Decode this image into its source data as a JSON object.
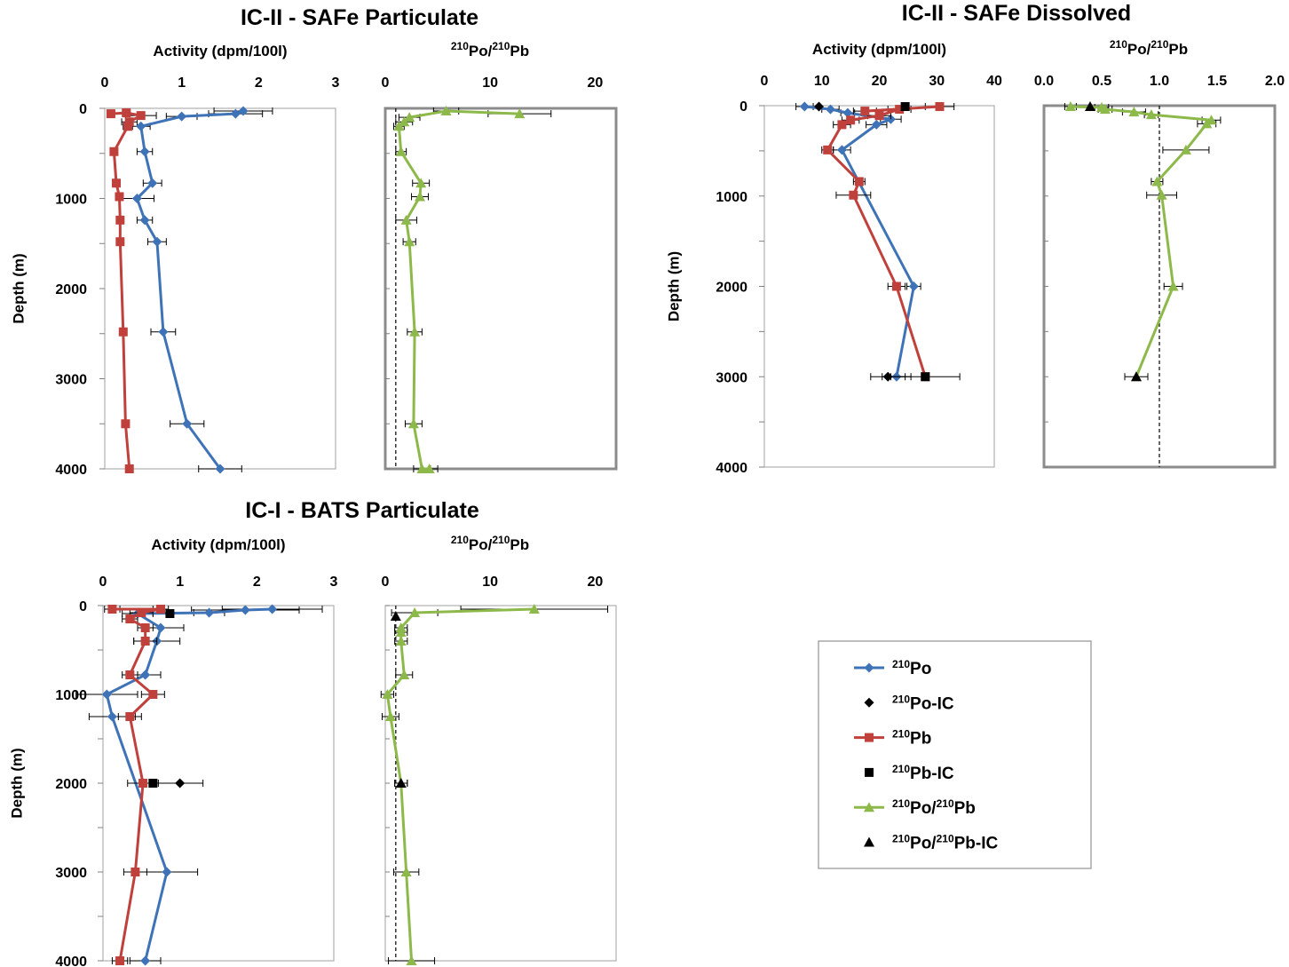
{
  "colors": {
    "po210": "#3F73B7",
    "pb210": "#C0403C",
    "ratio": "#8DB94A",
    "ic": "#000000",
    "frame_light": "#b0b0b0",
    "frame_bold": "#8c8c8c"
  },
  "chart_data": [
    {
      "id": "safe-particulate",
      "title": "IC-II - SAFe Particulate",
      "ylabel": "Depth (m)",
      "ylim": [
        4000,
        0
      ],
      "yticks": [
        0,
        1000,
        2000,
        3000,
        4000
      ],
      "panels": [
        {
          "type": "line",
          "xlabel": "Activity (dpm/100l)",
          "xlim": [
            0,
            3
          ],
          "xticks": [
            0,
            1,
            2,
            3
          ],
          "series": [
            {
              "name": "210Po",
              "marker": "diamond",
              "color": "#3F73B7",
              "x": [
                1.8,
                1.7,
                1.0,
                0.47,
                0.52,
                0.62,
                0.42,
                0.52,
                0.68,
                0.76,
                1.07,
                1.5
              ],
              "y": [
                30,
                60,
                90,
                200,
                480,
                830,
                1000,
                1240,
                1480,
                2480,
                3500,
                4000
              ],
              "xerr": [
                0.38,
                0.35,
                0.2,
                0.12,
                0.1,
                0.12,
                0.22,
                0.1,
                0.12,
                0.16,
                0.22,
                0.28
              ]
            },
            {
              "name": "210Pb",
              "marker": "square",
              "color": "#C0403C",
              "x": [
                0.08,
                0.28,
                0.47,
                0.32,
                0.3,
                0.12,
                0.15,
                0.19,
                0.2,
                0.2,
                0.24,
                0.27,
                0.32
              ],
              "y": [
                60,
                50,
                80,
                150,
                200,
                480,
                830,
                980,
                1240,
                1480,
                2480,
                3500,
                4000
              ],
              "xerr": [
                0.04,
                0.05,
                0.2,
                0.1,
                0.06,
                0.03,
                0.03,
                0.03,
                0.03,
                0.03,
                0.03,
                0.03,
                0.03
              ]
            }
          ]
        },
        {
          "type": "line",
          "xlabel": "210Po/210Pb",
          "xlim": [
            0,
            22
          ],
          "xticks": [
            0,
            10,
            20
          ],
          "ref_line": 1,
          "series": [
            {
              "name": "210Po/210Pb",
              "marker": "triangle",
              "color": "#8DB94A",
              "x": [
                12.8,
                5.8,
                2.3,
                1.8,
                1.3,
                1.5,
                3.4,
                3.3,
                2.0,
                2.3,
                2.8,
                2.7,
                3.5,
                4.2
              ],
              "y": [
                60,
                30,
                100,
                150,
                200,
                480,
                830,
                980,
                1240,
                1480,
                2480,
                3500,
                4000,
                4000
              ],
              "xerr": [
                3.0,
                1.2,
                1.0,
                0.8,
                0.5,
                0.5,
                0.8,
                0.8,
                1.0,
                0.6,
                0.7,
                0.8,
                0.8,
                0.8
              ]
            }
          ]
        }
      ]
    },
    {
      "id": "safe-dissolved",
      "title": "IC-II - SAFe Dissolved",
      "ylabel": "Depth (m)",
      "ylim": [
        4000,
        0
      ],
      "yticks": [
        0,
        1000,
        2000,
        3000,
        4000
      ],
      "panels": [
        {
          "type": "line",
          "xlabel": "Activity (dpm/100l)",
          "xlim": [
            0,
            40
          ],
          "xticks": [
            0,
            10,
            20,
            30,
            40
          ],
          "series": [
            {
              "name": "210Po",
              "marker": "diamond",
              "color": "#3F73B7",
              "x": [
                7,
                11.5,
                14.5,
                22,
                19.5,
                13.5,
                26,
                23
              ],
              "y": [
                10,
                40,
                80,
                150,
                210,
                490,
                2000,
                3000
              ],
              "xerr": [
                1.5,
                1.5,
                1.2,
                1.8,
                1.8,
                1.5,
                1.2,
                2.5
              ]
            },
            {
              "name": "210Pb",
              "marker": "square",
              "color": "#C0403C",
              "x": [
                30.5,
                17.5,
                23.5,
                20,
                15,
                13.5,
                11,
                16.5,
                15.5,
                23,
                28
              ],
              "y": [
                10,
                60,
                40,
                110,
                160,
                210,
                490,
                840,
                990,
                2000,
                3000
              ],
              "xerr": [
                2.5,
                2.0,
                2.0,
                2.0,
                1.5,
                1.5,
                1.0,
                1.0,
                3.0,
                1.5,
                6.0
              ]
            },
            {
              "name": "210Po-IC",
              "marker": "diamond",
              "color": "#000000",
              "x": [
                9.5,
                21.5
              ],
              "y": [
                10,
                3000
              ],
              "xerr": [
                0,
                3.0
              ]
            },
            {
              "name": "210Pb-IC",
              "marker": "square",
              "color": "#000000",
              "x": [
                24.5,
                28
              ],
              "y": [
                10,
                3000
              ],
              "xerr": [
                0,
                0
              ]
            }
          ]
        },
        {
          "type": "line",
          "xlabel": "210Po/210Pb",
          "xlim": [
            0,
            2
          ],
          "xticks": [
            "0.0",
            "0.5",
            "1.0",
            "1.5",
            "2.0"
          ],
          "ref_line": 1,
          "series": [
            {
              "name": "210Po/210Pb",
              "marker": "triangle",
              "color": "#8DB94A",
              "x": [
                0.23,
                0.5,
                0.53,
                0.78,
                0.93,
                1.45,
                1.41,
                1.23,
                0.98,
                1.02,
                1.12,
                0.8
              ],
              "y": [
                10,
                20,
                40,
                70,
                100,
                160,
                200,
                490,
                840,
                990,
                2000,
                3000
              ],
              "xerr": [
                0.05,
                0.06,
                0.06,
                0.1,
                0.06,
                0.08,
                0.08,
                0.2,
                0.05,
                0.13,
                0.08,
                0.1
              ]
            },
            {
              "name": "210Po/210Pb-IC",
              "marker": "triangle",
              "color": "#000000",
              "x": [
                0.4,
                0.8
              ],
              "y": [
                10,
                3000
              ],
              "xerr": [
                0,
                0
              ]
            }
          ]
        }
      ]
    },
    {
      "id": "bats-particulate",
      "title": "IC-I - BATS Particulate",
      "ylabel": "Depth (m)",
      "ylim": [
        4000,
        0
      ],
      "yticks": [
        0,
        1000,
        2000,
        3000,
        4000
      ],
      "panels": [
        {
          "type": "line",
          "xlabel": "Activity (dpm/100l)",
          "xlim": [
            0,
            3
          ],
          "xticks": [
            0,
            1,
            2,
            3
          ],
          "series": [
            {
              "name": "210Po",
              "marker": "diamond",
              "color": "#3F73B7",
              "x": [
                2.2,
                1.85,
                1.38,
                0.45,
                0.75,
                0.7,
                0.55,
                0.05,
                0.12,
                0.83,
                0.55
              ],
              "y": [
                40,
                50,
                80,
                90,
                250,
                400,
                780,
                1000,
                1250,
                3000,
                4000
              ],
              "xerr": [
                0.65,
                0.7,
                0.2,
                0.2,
                0.3,
                0.3,
                0.2,
                0.4,
                0.3,
                0.4,
                0.2
              ]
            },
            {
              "name": "210Pb",
              "marker": "square",
              "color": "#C0403C",
              "x": [
                0.12,
                0.75,
                0.5,
                0.35,
                0.55,
                0.55,
                0.35,
                0.65,
                0.35,
                0.52,
                0.42,
                0.22
              ],
              "y": [
                40,
                40,
                80,
                150,
                250,
                400,
                780,
                1000,
                1250,
                2000,
                3000,
                4000
              ],
              "xerr": [
                0.1,
                0.1,
                0.15,
                0.1,
                0.1,
                0.15,
                0.1,
                0.15,
                0.15,
                0.2,
                0.15,
                0.1
              ]
            },
            {
              "name": "210Po-IC",
              "marker": "diamond",
              "color": "#000000",
              "x": [
                1.0
              ],
              "y": [
                2000
              ],
              "xerr": [
                0.3
              ]
            },
            {
              "name": "210Pb-IC",
              "marker": "square",
              "color": "#000000",
              "x": [
                0.87,
                0.65
              ],
              "y": [
                90,
                2000
              ],
              "xerr": [
                0,
                0
              ]
            }
          ]
        },
        {
          "type": "line",
          "xlabel": "210Po/210Pb",
          "xlim": [
            0,
            22
          ],
          "xticks": [
            0,
            10,
            20
          ],
          "ref_line": 1,
          "series": [
            {
              "name": "210Po/210Pb",
              "marker": "triangle",
              "color": "#8DB94A",
              "x": [
                14.2,
                2.8,
                1.5,
                1.5,
                1.5,
                1.8,
                0.2,
                0.5,
                1.5,
                2.0,
                2.5
              ],
              "y": [
                40,
                80,
                250,
                300,
                400,
                780,
                1000,
                1250,
                2000,
                3000,
                4000
              ],
              "xerr": [
                7.0,
                2.2,
                0.6,
                0.6,
                0.6,
                0.8,
                0.6,
                0.8,
                0.6,
                1.2,
                2.2
              ]
            },
            {
              "name": "210Po/210Pb-IC",
              "marker": "triangle",
              "color": "#000000",
              "x": [
                1.0,
                1.5
              ],
              "y": [
                120,
                2000
              ],
              "xerr": [
                0,
                0.6
              ]
            }
          ]
        }
      ]
    }
  ],
  "legend": {
    "placement": "bottom-right",
    "entries": [
      {
        "text": "210Po",
        "marker": "diamond",
        "color": "#3F73B7",
        "line": true
      },
      {
        "text": "210Po-IC",
        "marker": "diamond",
        "color": "#000000",
        "line": false
      },
      {
        "text": "210Pb",
        "marker": "square",
        "color": "#C0403C",
        "line": true
      },
      {
        "text": "210Pb-IC",
        "marker": "square",
        "color": "#000000",
        "line": false
      },
      {
        "text": "210Po/210Pb",
        "marker": "triangle",
        "color": "#8DB94A",
        "line": true
      },
      {
        "text": "210Po/210Pb-IC",
        "marker": "triangle",
        "color": "#000000",
        "line": false
      }
    ]
  }
}
